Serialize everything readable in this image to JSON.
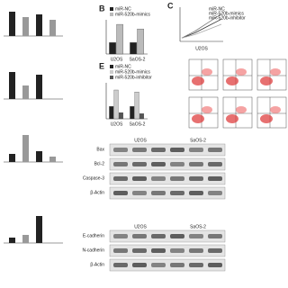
{
  "panels": [
    {
      "label": "B",
      "categories": [
        "U2OS",
        "SaOS-2"
      ],
      "ylim": [
        0,
        3
      ],
      "series": [
        {
          "name": "miR-NC",
          "color": "#222222",
          "values": [
            1.0,
            1.0
          ]
        },
        {
          "name": "miR-520b-mimics",
          "color": "#bbbbbb",
          "values": [
            2.6,
            2.2
          ]
        }
      ]
    },
    {
      "label": "E",
      "categories": [
        "U2OS",
        "SaOS-2"
      ],
      "ylim": [
        0,
        35
      ],
      "series": [
        {
          "name": "miR-NC",
          "color": "#222222",
          "values": [
            12,
            12
          ]
        },
        {
          "name": "miR-520b-mimics",
          "color": "#cccccc",
          "values": [
            28,
            26
          ]
        },
        {
          "name": "miR-520b-inhibitor",
          "color": "#555555",
          "values": [
            6,
            5
          ]
        }
      ]
    }
  ],
  "curves": {
    "label": "C",
    "x_label": "U2OS",
    "ylim": [
      0,
      2
    ],
    "series": [
      {
        "name": "miR-NC",
        "color": "#333333",
        "values": [
          0.2,
          0.5,
          0.9,
          1.3
        ]
      },
      {
        "name": "miR-520b-mimics",
        "color": "#777777",
        "values": [
          0.2,
          0.6,
          1.1,
          1.6
        ]
      },
      {
        "name": "miR-520b-inhibitor",
        "color": "#aaaaaa",
        "values": [
          0.2,
          0.4,
          0.7,
          1.0
        ]
      }
    ]
  },
  "side_bars": [
    [
      0.9,
      0.7,
      0.8,
      0.6
    ],
    [
      1.0,
      0.5,
      0.9
    ],
    [
      0.3,
      1.0,
      0.4,
      0.2
    ],
    [
      0.2,
      0.3,
      1.0
    ]
  ],
  "blots": [
    {
      "columns": [
        "U2OS",
        "SaOS-2"
      ],
      "rows": [
        "Bax",
        "Bcl-2",
        "Caspase-3",
        "β-Actin"
      ]
    },
    {
      "columns": [
        "U2OS",
        "SaOS-2"
      ],
      "rows": [
        "E-cadherin",
        "N-cadherin",
        "β-Actin"
      ]
    }
  ]
}
